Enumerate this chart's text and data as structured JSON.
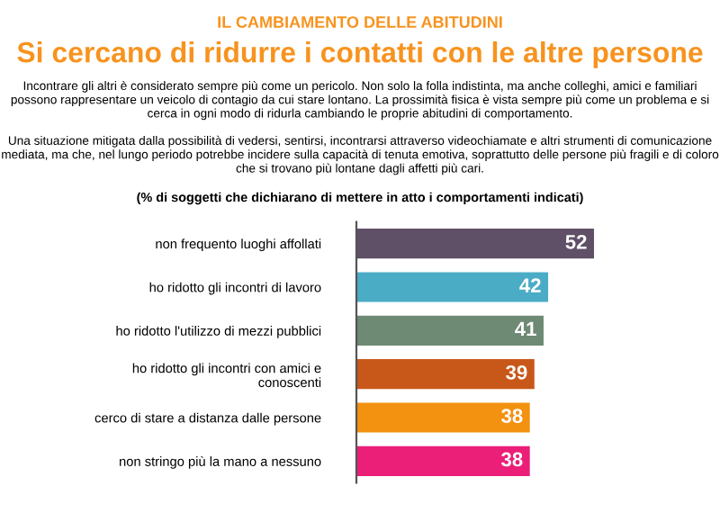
{
  "chart_data": {
    "type": "bar",
    "orientation": "horizontal",
    "title": "Si cercano di ridurre i contatti con le altre persone",
    "subtitle": "(% di soggetti che dichiarano di mettere in atto i comportamenti indicati)",
    "annotations": [
      "IL CAMBIAMENTO DELLE ABITUDINI",
      "Incontrare gli altri è considerato sempre più come un pericolo. Non solo la folla indistinta, ma anche colleghi, amici e familiari possono rappresentare un veicolo di contagio da cui stare lontano. La prossimità fisica è vista sempre più come un problema e si cerca in ogni modo di ridurla cambiando le proprie abitudini di comportamento.",
      "Una situazione mitigata dalla possibilità di vedersi, sentirsi, incontrarsi attraverso videochiamate e altri strumenti di comunicazione mediata, ma che, nel lungo periodo potrebbe incidere sulla capacità di tenuta emotiva, soprattutto delle persone più fragili e di coloro che si trovano più lontane dagli affetti più cari."
    ],
    "categories": [
      "non frequento luoghi affollati",
      "ho ridotto gli incontri di lavoro",
      "ho ridotto l'utilizzo di mezzi pubblici",
      "ho ridotto gli incontri con amici e\nconoscenti",
      "cerco di stare a distanza dalle persone",
      "non stringo più la mano a nessuno"
    ],
    "values": [
      52,
      42,
      41,
      39,
      38,
      38
    ],
    "colors": [
      "#5f5068",
      "#4bacc6",
      "#6e8a74",
      "#c8581a",
      "#f39110",
      "#eb1e78"
    ],
    "data_labels": true,
    "grid": false,
    "legend": false
  }
}
